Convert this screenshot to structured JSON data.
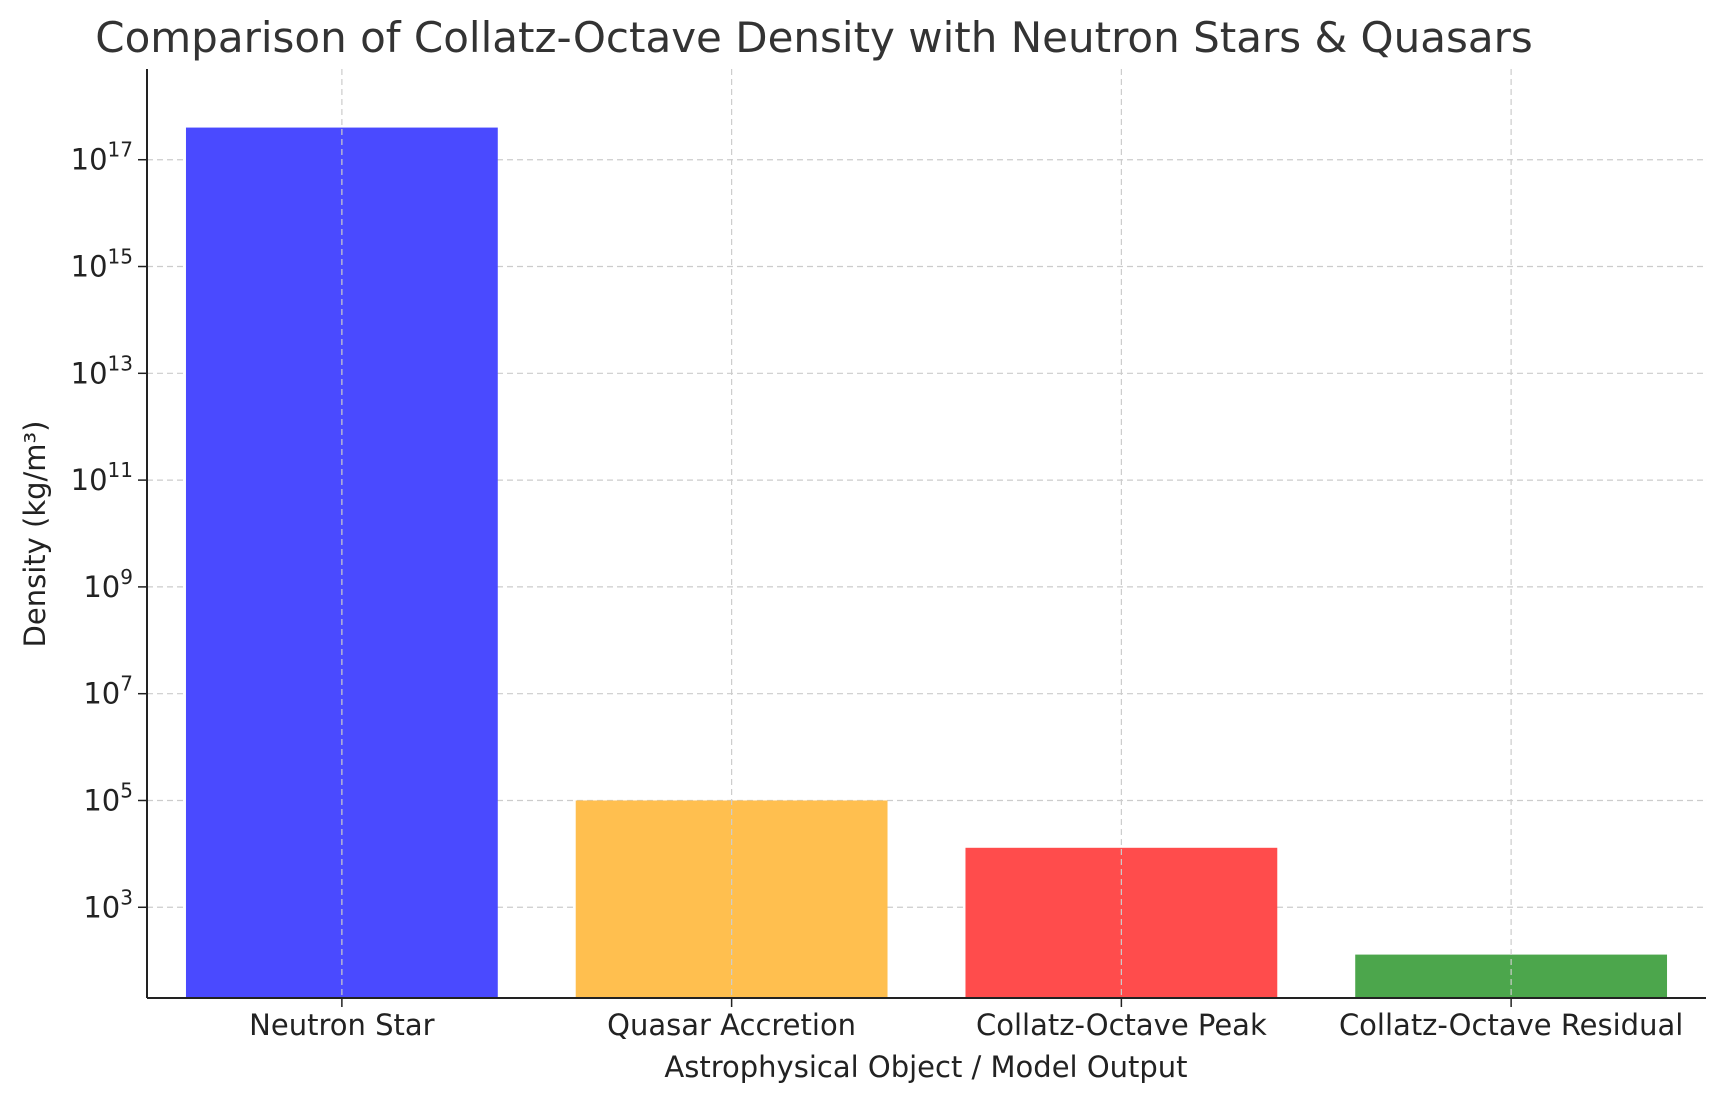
{
  "chart_data": {
    "type": "bar",
    "title": "Comparison of Collatz-Octave Density with Neutron Stars & Quasars",
    "xlabel": "Astrophysical Object / Model Output",
    "ylabel": "Density (kg/m³)",
    "yscale": "log",
    "ylim": [
      20,
      5e+18
    ],
    "yticks": [
      {
        "exp": 3,
        "value": 1000
      },
      {
        "exp": 5,
        "value": 100000
      },
      {
        "exp": 7,
        "value": 10000000
      },
      {
        "exp": 9,
        "value": 1000000000
      },
      {
        "exp": 11,
        "value": 100000000000
      },
      {
        "exp": 13,
        "value": 10000000000000
      },
      {
        "exp": 15,
        "value": 1000000000000000
      },
      {
        "exp": 17,
        "value": 100000000000000000
      }
    ],
    "tick_base": "10",
    "categories": [
      "Neutron Star",
      "Quasar Accretion",
      "Collatz-Octave Peak",
      "Collatz-Octave Residual"
    ],
    "values": [
      4e+17,
      100000,
      13000,
      130
    ],
    "colors": [
      "#4a4aff",
      "#ffbf4f",
      "#ff4c4c",
      "#4ca64c"
    ],
    "grid": true,
    "legend": "none"
  }
}
